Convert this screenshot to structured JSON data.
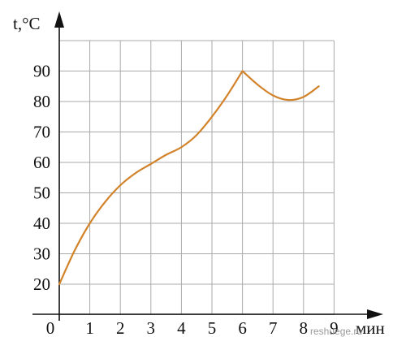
{
  "chart_data": {
    "type": "line",
    "title": "",
    "xlabel": "мин",
    "ylabel_var": "t",
    "ylabel_unit": ",°C",
    "xlim": [
      0,
      9
    ],
    "ylim": [
      20,
      100
    ],
    "grid": true,
    "x_ticks": [
      0,
      1,
      2,
      3,
      4,
      5,
      6,
      7,
      8,
      9
    ],
    "x_tick_labels": [
      "0",
      "1",
      "2",
      "3",
      "4",
      "5",
      "6",
      "7",
      "8",
      "9"
    ],
    "y_ticks": [
      20,
      30,
      40,
      50,
      60,
      70,
      80,
      90
    ],
    "y_tick_labels": [
      "20",
      "30",
      "40",
      "50",
      "60",
      "70",
      "80",
      "90"
    ],
    "series": [
      {
        "color": "#d2832a",
        "x": [
          0,
          0.5,
          1,
          1.5,
          2,
          2.5,
          3,
          3.5,
          4,
          4.5,
          5,
          5.5,
          6,
          6.5,
          7,
          7.5,
          8,
          8.5
        ],
        "y": [
          20,
          31,
          40,
          47,
          52.5,
          56.5,
          59.5,
          62.5,
          65,
          69,
          75,
          82,
          90,
          85.5,
          82,
          80.5,
          81.5,
          85
        ]
      }
    ]
  },
  "watermark": "reshuege.ru",
  "colors": {
    "grid": "#aaaaaa",
    "axis": "#111111",
    "line": "#d2832a"
  }
}
